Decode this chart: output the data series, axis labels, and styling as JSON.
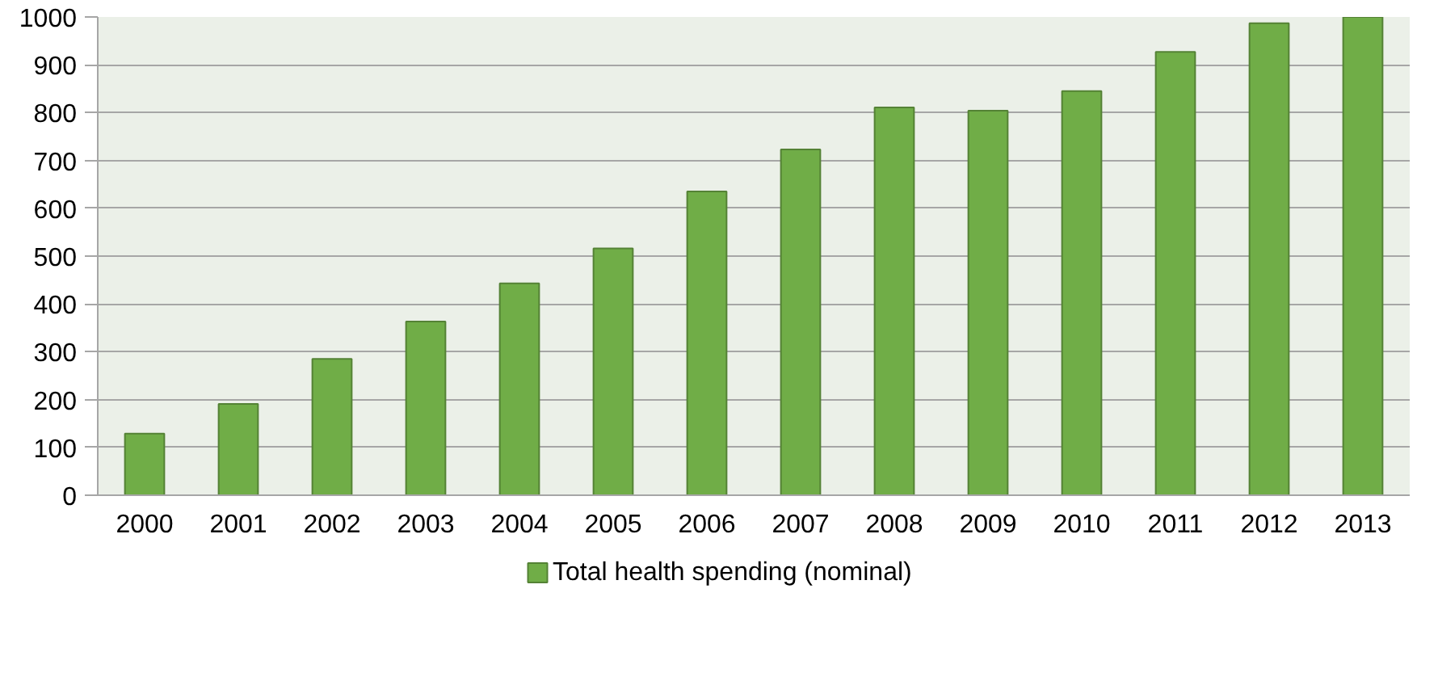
{
  "chart_data": {
    "type": "bar",
    "categories": [
      "2000",
      "2001",
      "2002",
      "2003",
      "2004",
      "2005",
      "2006",
      "2007",
      "2008",
      "2009",
      "2010",
      "2011",
      "2012",
      "2013"
    ],
    "series": [
      {
        "name": "Total health spending (nominal)",
        "color": "#70ad47",
        "values": [
          129,
          191,
          285,
          363,
          443,
          516,
          635,
          723,
          811,
          804,
          845,
          927,
          987,
          1000
        ]
      }
    ],
    "ylim": [
      0,
      1000
    ],
    "yticks": [
      0,
      100,
      200,
      300,
      400,
      500,
      600,
      700,
      800,
      900,
      1000
    ],
    "grid": "y",
    "legend": "bottom"
  }
}
